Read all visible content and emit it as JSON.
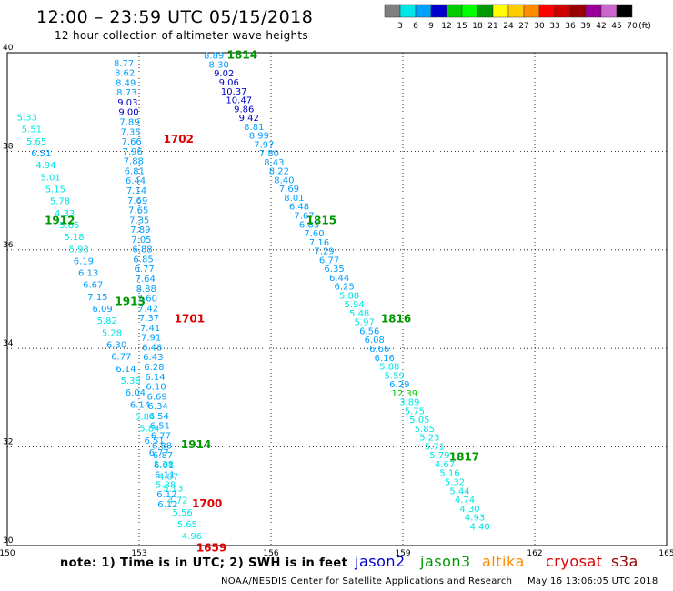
{
  "chart_data": {
    "type": "scatter",
    "title": "12:00 – 23:59 UTC 05/15/2018",
    "subtitle": "12 hour collection of altimeter wave heights",
    "note": "note: 1) Time is in UTC; 2) SWH is in feet",
    "credit": "NOAA/NESDIS Center for Satellite Applications and Research",
    "timestamp": "May 16 13:06:05 UTC 2018",
    "xlim": [
      150,
      165
    ],
    "ylim": [
      30,
      40
    ],
    "x_ticks": [
      "150",
      "153",
      "156",
      "159",
      "162",
      "165"
    ],
    "y_ticks": [
      "30",
      "32",
      "34",
      "36",
      "38",
      "40"
    ],
    "grid": true,
    "color_scale": {
      "unit": "(ft)",
      "labels": [
        "3",
        "6",
        "9",
        "12",
        "15",
        "18",
        "21",
        "24",
        "27",
        "30",
        "33",
        "36",
        "39",
        "42",
        "45",
        "70"
      ],
      "colors": [
        "#7f7f7f",
        "#00e5e5",
        "#00a0ff",
        "#0000cc",
        "#00cc00",
        "#00ff00",
        "#009900",
        "#ffff00",
        "#ffcc00",
        "#ff8c00",
        "#ff0000",
        "#cc0000",
        "#990000",
        "#990099",
        "#cc66cc",
        "#000000"
      ]
    },
    "satellites": [
      {
        "name": "jason2",
        "color": "#0000cc"
      },
      {
        "name": "jason3",
        "color": "#009900"
      },
      {
        "name": "altika",
        "color": "#ff8c00"
      },
      {
        "name": "cryosat",
        "color": "#e00000"
      },
      {
        "name": "s3a",
        "color": "#990000"
      }
    ],
    "passes": [
      {
        "id": "1701-1702",
        "start": [
          152.65,
          39.8
        ],
        "end": [
          153.65,
          30.85
        ],
        "values": [
          "8.77",
          "8.62",
          "8.49",
          "8.73",
          "9.03",
          "9.00",
          "7.89",
          "7.35",
          "7.66",
          "7.96",
          "7.88",
          "6.81",
          "6.44",
          "7.14",
          "7.69",
          "7.65",
          "7.35",
          "7.89",
          "7.05",
          "6.88",
          "6.85",
          "6.77",
          "7.64",
          "8.88",
          "7.60",
          "7.42",
          "7.37",
          "7.41",
          "7.91",
          "6.48",
          "6.43",
          "6.28",
          "6.14",
          "6.10",
          "6.69",
          "6.34",
          "6.54",
          "6.51",
          "6.77",
          "6.88",
          "6.87",
          "6.01",
          "6.11",
          "5.38",
          "6.12",
          "6.12"
        ]
      },
      {
        "id": "1814-1817",
        "start": [
          154.7,
          39.95
        ],
        "end": [
          160.75,
          30.4
        ],
        "values": [
          "8.89",
          "8.30",
          "9.02",
          "9.06",
          "10.37",
          "10.47",
          "9.86",
          "9.42",
          "8.81",
          "8.99",
          "7.97",
          "7.80",
          "8.43",
          "8.22",
          "8.40",
          "7.69",
          "8.01",
          "6.48",
          "7.67",
          "6.83",
          "7.60",
          "7.16",
          "7.29",
          "6.77",
          "6.35",
          "6.44",
          "6.25",
          "5.88",
          "5.94",
          "5.48",
          "5.97",
          "6.56",
          "6.08",
          "6.66",
          "6.16",
          "5.88",
          "5.59",
          "6.29",
          "12.39",
          "3.89",
          "5.75",
          "5.05",
          "5.85",
          "5.23",
          "5.71",
          "5.79",
          "4.67",
          "5.16",
          "5.32",
          "5.44",
          "4.74",
          "4.30",
          "4.93",
          "4.40"
        ]
      },
      {
        "id": "1912-1914",
        "start": [
          150.45,
          38.7
        ],
        "end": [
          154.2,
          30.2
        ],
        "values": [
          "5.33",
          "5.51",
          "5.65",
          "6.51",
          "4.94",
          "5.01",
          "5.15",
          "5.78",
          "4.33",
          "5.85",
          "5.18",
          "5.93",
          "6.19",
          "6.13",
          "6.67",
          "7.15",
          "6.09",
          "5.82",
          "5.28",
          "6.30",
          "6.77",
          "6.14",
          "5.38",
          "6.04",
          "6.14",
          "5.84",
          "5.84",
          "6.51",
          "6.77",
          "5.38",
          "4.87",
          "5.13",
          "4.72",
          "5.56",
          "5.65",
          "4.96"
        ]
      }
    ],
    "pass_labels": [
      {
        "text": "1702",
        "lon": 153.55,
        "lat": 38.25,
        "color": "#e00000"
      },
      {
        "text": "1701",
        "lon": 153.8,
        "lat": 34.6,
        "color": "#e00000"
      },
      {
        "text": "1700",
        "lon": 154.2,
        "lat": 30.85,
        "color": "#e00000"
      },
      {
        "text": "1659",
        "lon": 154.3,
        "lat": 29.95,
        "color": "#e00000"
      },
      {
        "text": "1814",
        "lon": 155.0,
        "lat": 39.95,
        "color": "#009900"
      },
      {
        "text": "1815",
        "lon": 156.8,
        "lat": 36.6,
        "color": "#009900"
      },
      {
        "text": "1816",
        "lon": 158.5,
        "lat": 34.6,
        "color": "#009900"
      },
      {
        "text": "1817",
        "lon": 160.05,
        "lat": 31.8,
        "color": "#009900"
      },
      {
        "text": "1912",
        "lon": 150.85,
        "lat": 36.6,
        "color": "#009900"
      },
      {
        "text": "1913",
        "lon": 152.45,
        "lat": 34.95,
        "color": "#009900"
      },
      {
        "text": "1914",
        "lon": 153.95,
        "lat": 32.05,
        "color": "#009900"
      }
    ]
  }
}
